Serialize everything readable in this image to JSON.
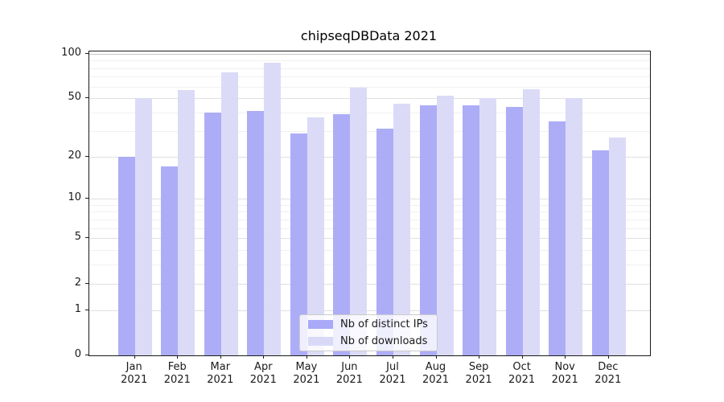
{
  "chart_data": {
    "type": "bar",
    "title": "chipseqDBData 2021",
    "categories": [
      "Jan 2021",
      "Feb 2021",
      "Mar 2021",
      "Apr 2021",
      "May 2021",
      "Jun 2021",
      "Jul 2021",
      "Aug 2021",
      "Sep 2021",
      "Oct 2021",
      "Nov 2021",
      "Dec 2021"
    ],
    "series": [
      {
        "name": "Nb of distinct IPs",
        "color": "#a9a9f7",
        "values": [
          20,
          17,
          40,
          41,
          29,
          39,
          31,
          45,
          45,
          44,
          35,
          22
        ]
      },
      {
        "name": "Nb of downloads",
        "color": "#d9d9f7",
        "values": [
          50,
          57,
          75,
          87,
          37,
          59,
          46,
          52,
          50,
          58,
          50,
          27
        ]
      }
    ],
    "xlabel": "",
    "ylabel": "",
    "yscale": "log1p",
    "ylim": [
      0,
      103.5
    ],
    "y_major_ticks": [
      100,
      50,
      20,
      10,
      5,
      2,
      1,
      0
    ],
    "y_minor_gridlines": [
      3,
      4,
      6,
      7,
      8,
      9,
      30,
      40,
      60,
      70,
      80,
      90
    ],
    "grid": true,
    "legend_position": "lower center",
    "axis_color": "#1a1a1a",
    "major_grid_color": "#e0e0e0",
    "minor_grid_color": "#f0f0f0"
  }
}
